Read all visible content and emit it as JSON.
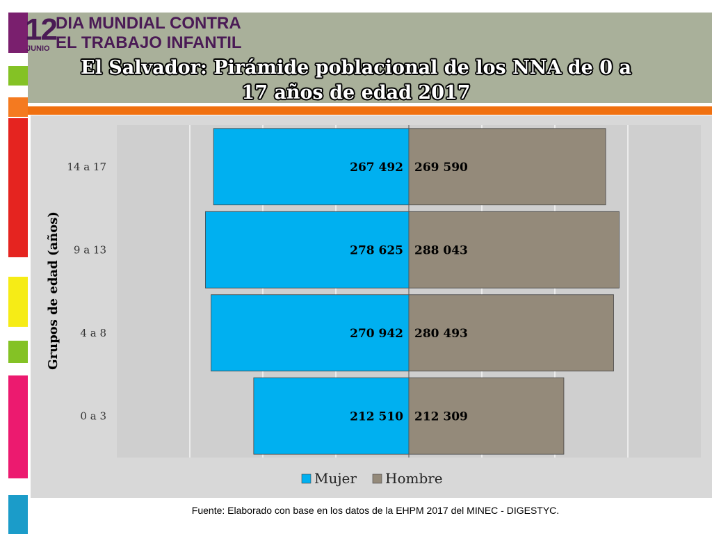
{
  "banner": {
    "day": "12",
    "month": "JUNIO",
    "line1": "DIA MUNDIAL CONTRA",
    "line2": "EL TRABAJO INFANTIL"
  },
  "colors": {
    "header_bg": "#a9b09a",
    "accent_orange": "#f07010",
    "mujer": "#00b0f0",
    "hombre": "#948a7a",
    "logo_text": "#4a1a55"
  },
  "chart_data": {
    "type": "bar",
    "orientation": "horizontal-pyramid",
    "title": "El Salvador: Pirámide poblacional de los NNA de 0 a 17 años de edad 2017",
    "title_lines": [
      "El Salvador: Pirámide poblacional de los NNA de 0 a",
      "17 años de edad 2017"
    ],
    "categories": [
      "0 a 3",
      "4 a 8",
      "9 a 13",
      "14 a 17"
    ],
    "series": [
      {
        "name": "Mujer",
        "values": [
          212510,
          270942,
          278625,
          267492
        ],
        "labels": [
          "212 510",
          "270 942",
          "278 625",
          "267 492"
        ],
        "side": "left",
        "color": "#00b0f0"
      },
      {
        "name": "Hombre",
        "values": [
          212309,
          280493,
          288043,
          269590
        ],
        "labels": [
          "212 309",
          "280 493",
          "288 043",
          "269 590"
        ],
        "side": "right",
        "color": "#948a7a"
      }
    ],
    "ylabel": "Grupos de edad (años)",
    "xlim": [
      -400000,
      400000
    ],
    "x_gridlines": [
      -300000,
      -200000,
      -100000,
      0,
      100000,
      200000,
      300000
    ],
    "legend": "bottom"
  },
  "footer": {
    "source": "Fuente: Elaborado con base en los datos de la EHPM  2017 del MINEC - DIGESTYC."
  }
}
